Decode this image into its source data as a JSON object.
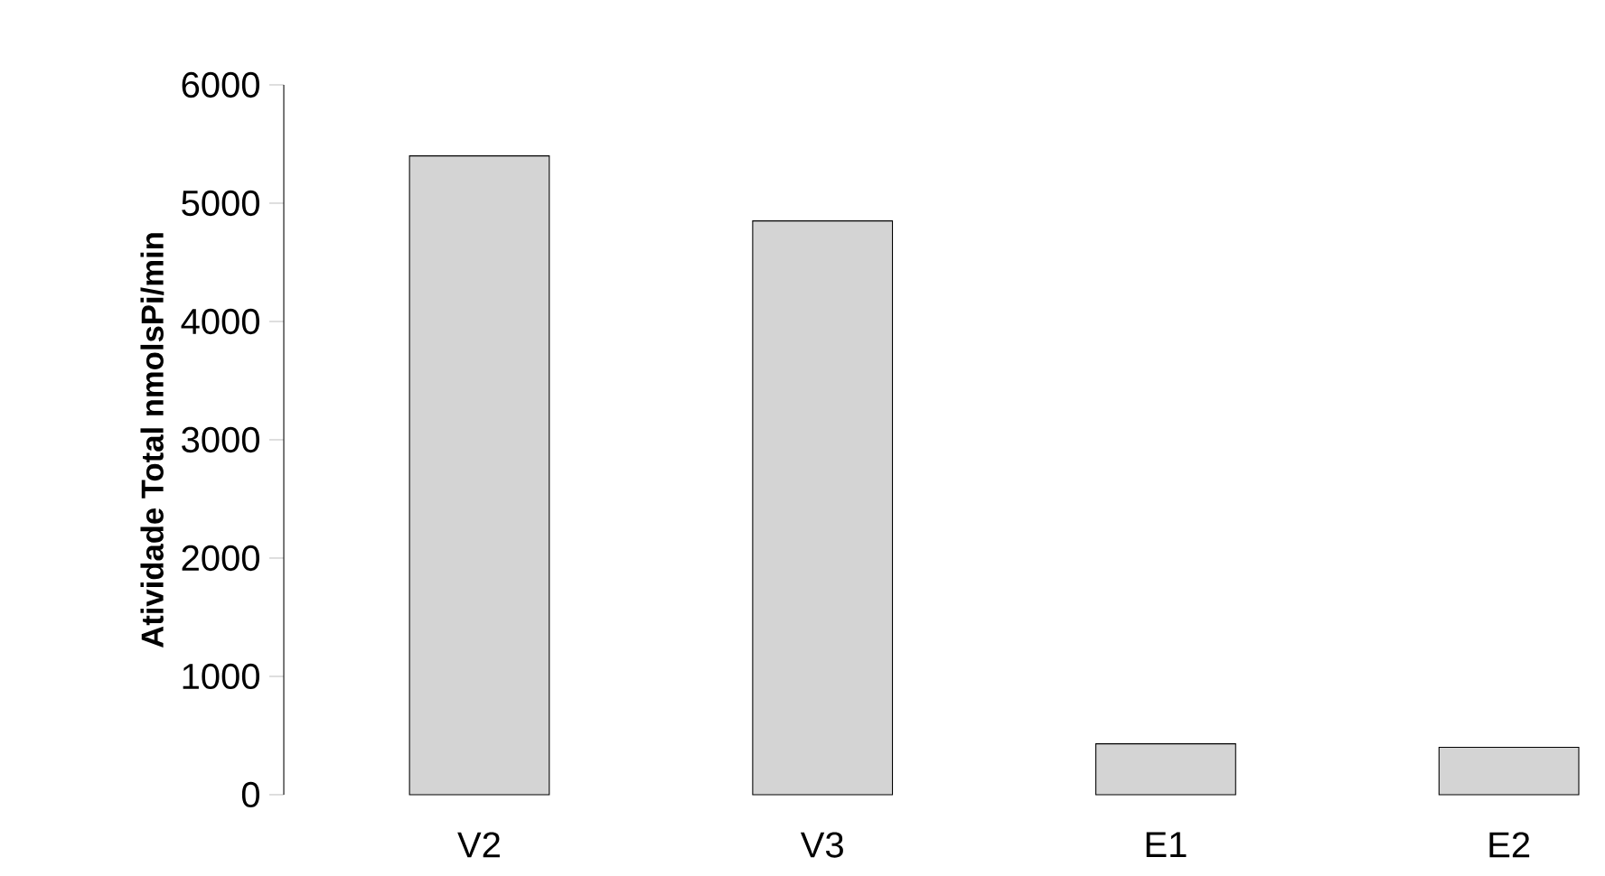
{
  "chart_data": {
    "type": "bar",
    "ylabel": "Atividade Total nmolsPi/min",
    "categories": [
      "V2",
      "V3",
      "E1",
      "E2"
    ],
    "values": [
      5400,
      4850,
      430,
      400
    ],
    "color": "#d4d4d4",
    "ylim": [
      0,
      6000
    ],
    "yticks": [
      0,
      1000,
      2000,
      3000,
      4000,
      5000,
      6000
    ],
    "grid": false
  }
}
